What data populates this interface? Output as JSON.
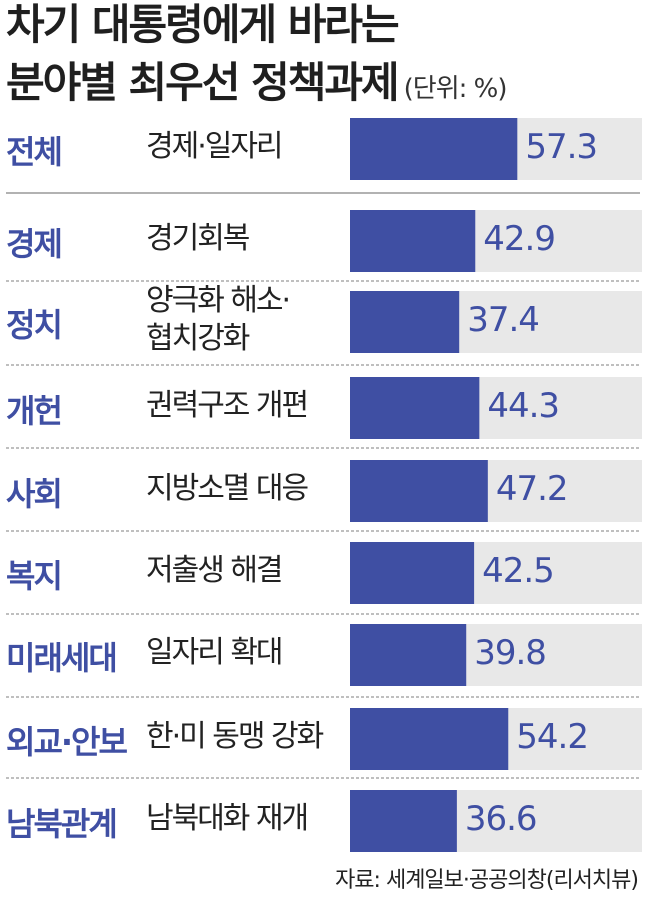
{
  "header": {
    "title_line1": "차기 대통령에게 바라는",
    "title_line2": "분야별 최우선 정책과제",
    "unit": "(단위: %)"
  },
  "colors": {
    "bar": "#3f4fa3",
    "track": "#e8e8e8",
    "accent_text": "#3f4fa3",
    "divider": "#999999"
  },
  "chart_data": {
    "type": "bar",
    "orientation": "horizontal",
    "title": "차기 대통령에게 바라는 분야별 최우선 정책과제",
    "unit": "%",
    "xlim": [
      0,
      100
    ],
    "grid": false,
    "rows": [
      {
        "category": "전체",
        "item": "경제·일자리",
        "value": 57.3,
        "label": "57.3"
      },
      {
        "category": "경제",
        "item": "경기회복",
        "value": 42.9,
        "label": "42.9"
      },
      {
        "category": "정치",
        "item": "양극화 해소·\n협치강화",
        "value": 37.4,
        "label": "37.4"
      },
      {
        "category": "개헌",
        "item": "권력구조 개편",
        "value": 44.3,
        "label": "44.3"
      },
      {
        "category": "사회",
        "item": "지방소멸 대응",
        "value": 47.2,
        "label": "47.2"
      },
      {
        "category": "복지",
        "item": "저출생 해결",
        "value": 42.5,
        "label": "42.5"
      },
      {
        "category": "미래세대",
        "item": "일자리 확대",
        "value": 39.8,
        "label": "39.8"
      },
      {
        "category": "외교·안보",
        "item": "한·미 동맹 강화",
        "value": 54.2,
        "label": "54.2"
      },
      {
        "category": "남북관계",
        "item": "남북대화 재개",
        "value": 36.6,
        "label": "36.6"
      }
    ]
  },
  "footer": {
    "source": "자료: 세계일보·공공의창(리서치뷰)"
  }
}
